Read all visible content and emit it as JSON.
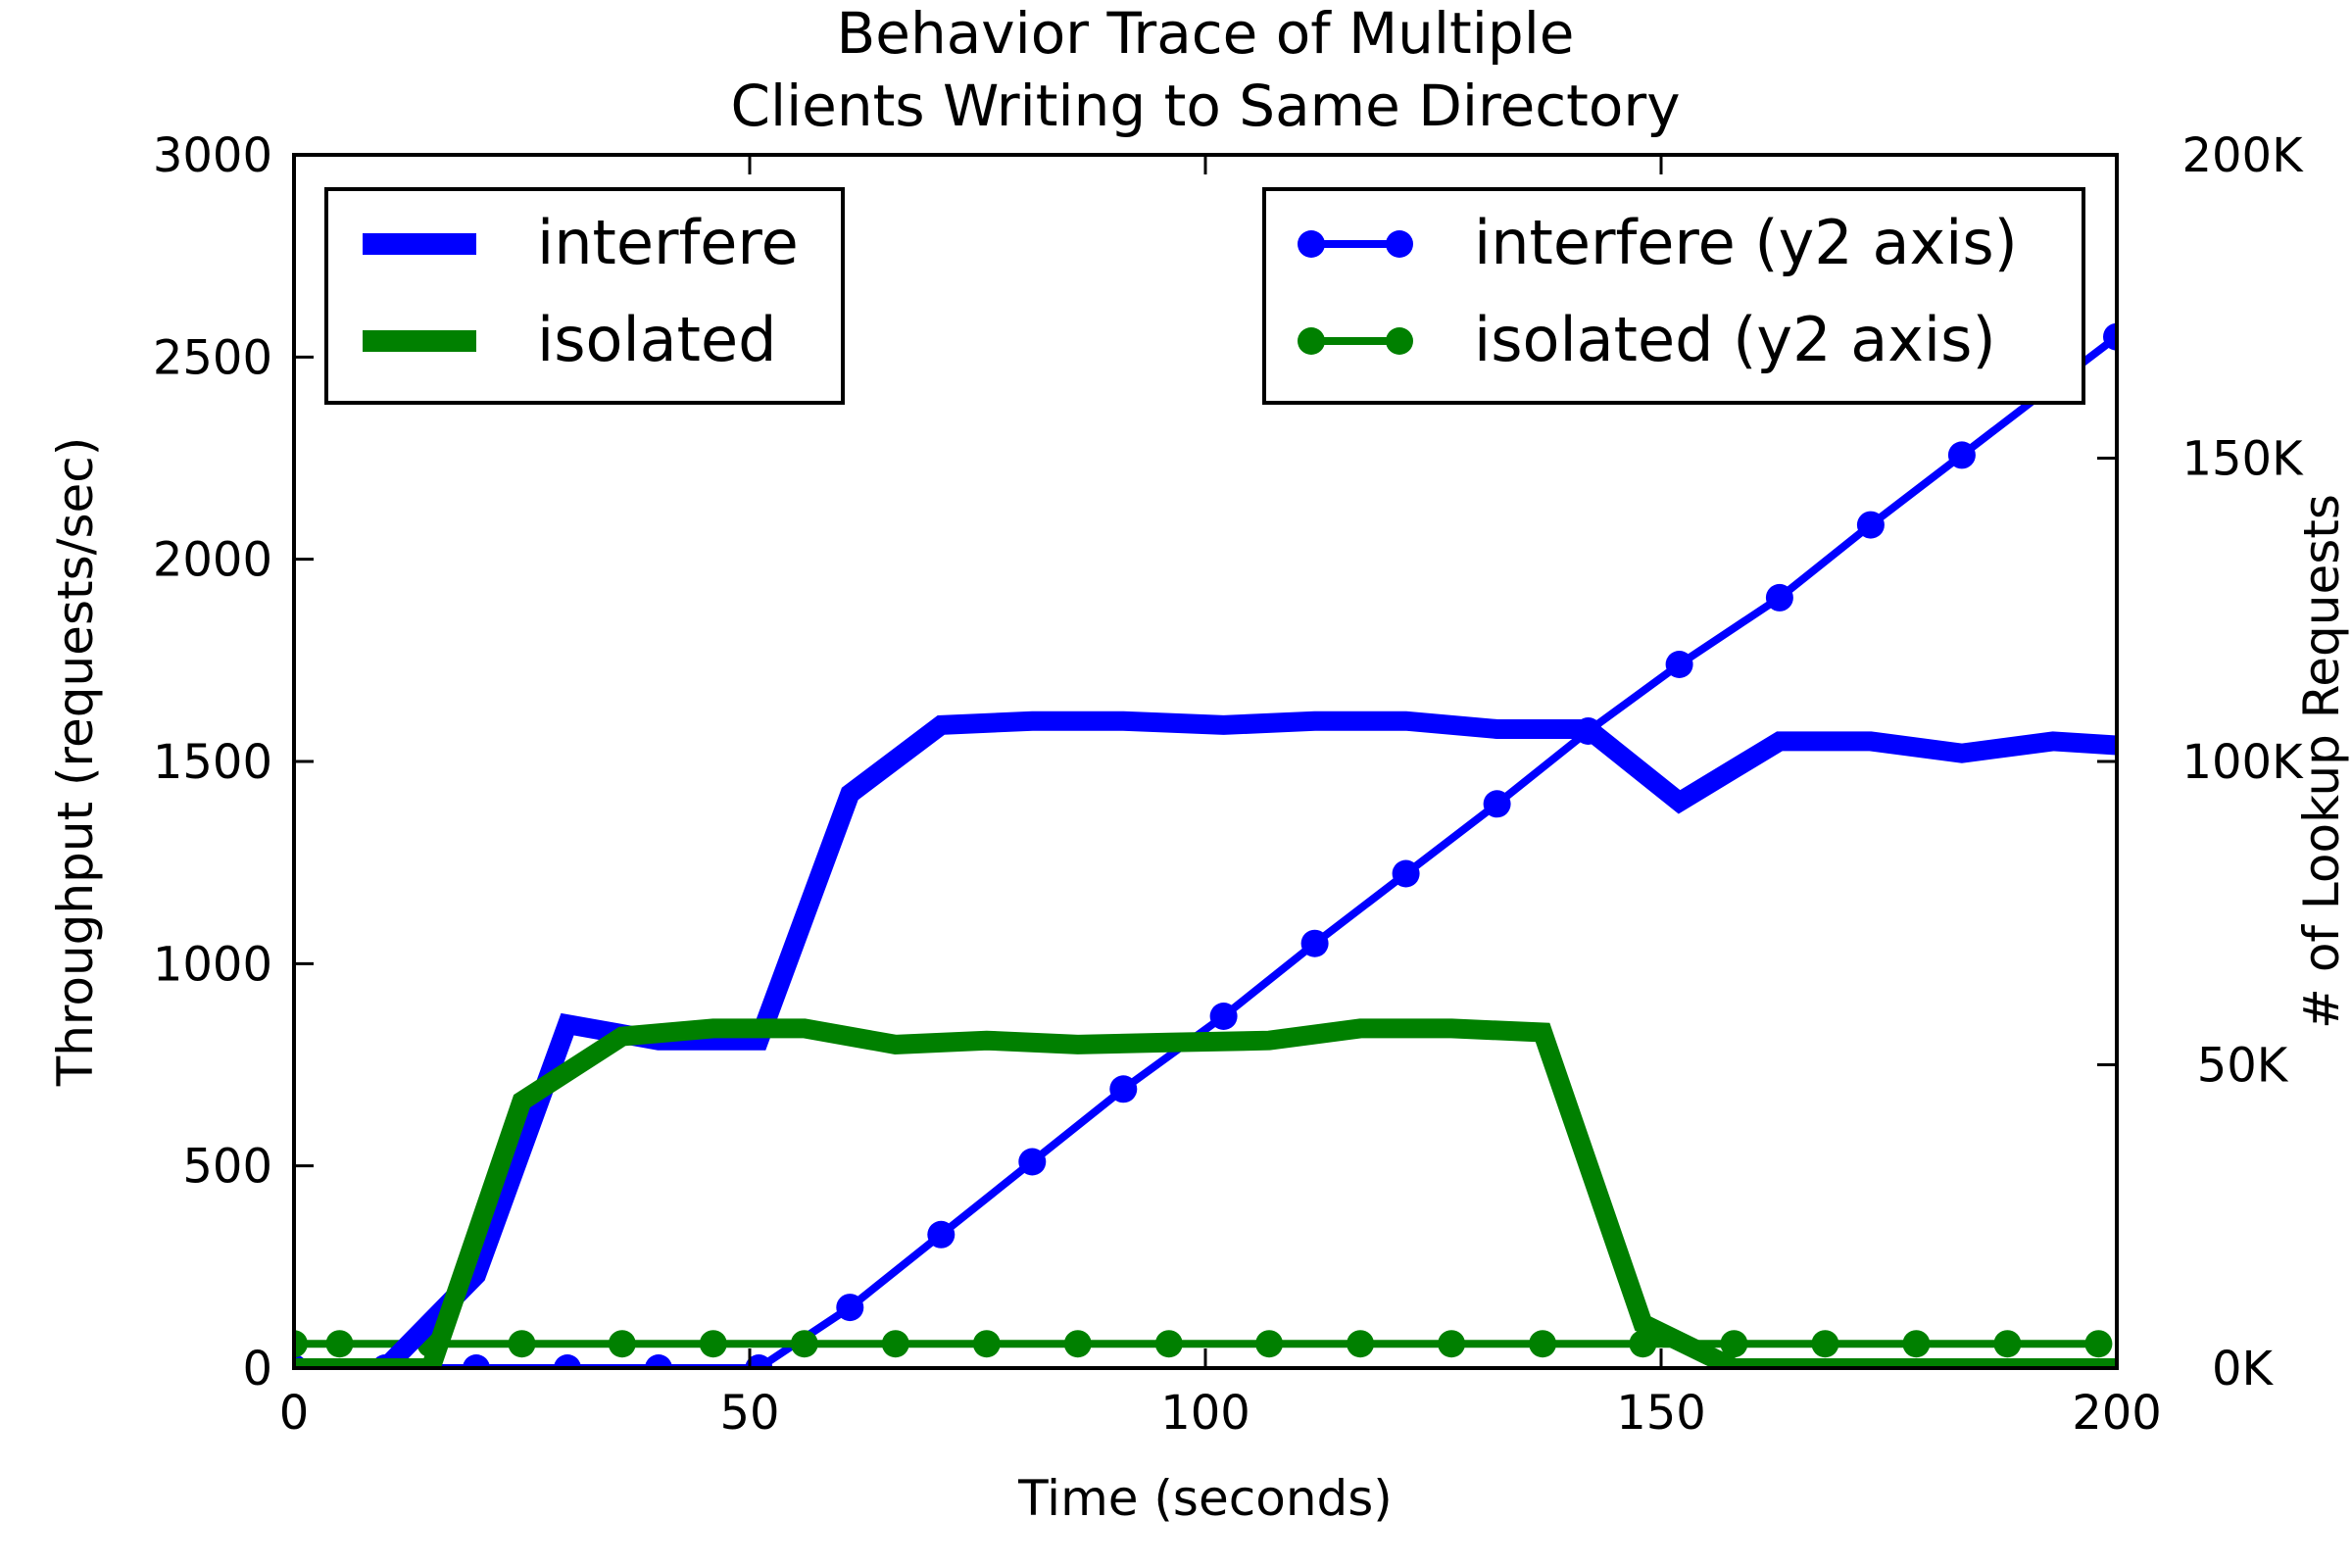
{
  "chart_data": {
    "type": "line",
    "title_lines": [
      "Behavior Trace of Multiple",
      "Clients Writing to Same Directory"
    ],
    "xlabel": "Time (seconds)",
    "ylabel": "Throughput (requests/sec)",
    "y2label": "# of Lookup Requests",
    "xlim": [
      0,
      200
    ],
    "ylim": [
      0,
      3000
    ],
    "y2lim": [
      0,
      200000
    ],
    "x_ticks": [
      "0",
      "50",
      "100",
      "150",
      "200"
    ],
    "y_ticks": [
      "0",
      "500",
      "1000",
      "1500",
      "2000",
      "2500",
      "3000"
    ],
    "y2_ticks": [
      "0K",
      "50K",
      "100K",
      "150K",
      "200K"
    ],
    "grid": false,
    "legend_left_placement": "top-left",
    "legend_right_placement": "top-right",
    "series": [
      {
        "name": "interfere",
        "axis": "y",
        "color": "#0000ff",
        "style": "thick-line",
        "x": [
          0,
          10,
          20,
          30,
          40,
          50,
          51,
          61,
          71,
          81,
          91,
          102,
          112,
          122,
          132,
          142,
          152,
          163,
          173,
          183,
          193,
          200
        ],
        "y": [
          0,
          0,
          230,
          850,
          810,
          810,
          810,
          1420,
          1590,
          1600,
          1600,
          1590,
          1600,
          1600,
          1580,
          1580,
          1400,
          1550,
          1550,
          1520,
          1550,
          1540
        ]
      },
      {
        "name": "isolated",
        "axis": "y",
        "color": "#008000",
        "style": "thick-line",
        "x": [
          0,
          10,
          15,
          25,
          36,
          46,
          56,
          66,
          76,
          86,
          96,
          107,
          117,
          127,
          137,
          148,
          158,
          168,
          178,
          188,
          200
        ],
        "y": [
          0,
          0,
          0,
          660,
          820,
          840,
          840,
          800,
          810,
          800,
          805,
          810,
          840,
          840,
          830,
          110,
          0,
          0,
          0,
          0,
          0
        ]
      },
      {
        "name": "interfere (y2 axis)",
        "axis": "y2",
        "color": "#0000ff",
        "style": "line-dot",
        "x": [
          0,
          10,
          20,
          30,
          40,
          51,
          61,
          71,
          81,
          91,
          102,
          112,
          122,
          132,
          142,
          152,
          163,
          173,
          183,
          193,
          200
        ],
        "y": [
          0,
          0,
          0,
          0,
          0,
          0,
          10000,
          22000,
          34000,
          46000,
          58000,
          70000,
          81500,
          93000,
          105000,
          116000,
          127000,
          139000,
          150500,
          162000,
          170000
        ]
      },
      {
        "name": "isolated (y2 axis)",
        "axis": "y2",
        "color": "#008000",
        "style": "line-dot",
        "x": [
          0,
          5,
          15,
          25,
          36,
          46,
          56,
          66,
          76,
          86,
          96,
          107,
          117,
          127,
          137,
          148,
          158,
          168,
          178,
          188,
          198
        ],
        "y": [
          4000,
          4000,
          4000,
          4000,
          4000,
          4000,
          4000,
          4000,
          4000,
          4000,
          4000,
          4000,
          4000,
          4000,
          4000,
          4000,
          4000,
          4000,
          4000,
          4000,
          4000
        ]
      }
    ]
  }
}
